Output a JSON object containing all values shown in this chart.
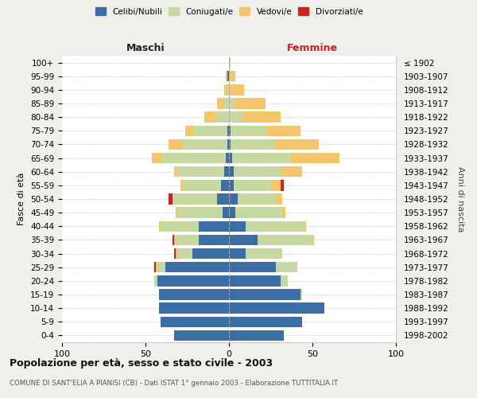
{
  "age_groups": [
    "0-4",
    "5-9",
    "10-14",
    "15-19",
    "20-24",
    "25-29",
    "30-34",
    "35-39",
    "40-44",
    "45-49",
    "50-54",
    "55-59",
    "60-64",
    "65-69",
    "70-74",
    "75-79",
    "80-84",
    "85-89",
    "90-94",
    "95-99",
    "100+"
  ],
  "birth_years": [
    "1998-2002",
    "1993-1997",
    "1988-1992",
    "1983-1987",
    "1978-1982",
    "1973-1977",
    "1968-1972",
    "1963-1967",
    "1958-1962",
    "1953-1957",
    "1948-1952",
    "1943-1947",
    "1938-1942",
    "1933-1937",
    "1928-1932",
    "1923-1927",
    "1918-1922",
    "1913-1917",
    "1908-1912",
    "1903-1907",
    "≤ 1902"
  ],
  "maschi_celibi": [
    33,
    41,
    42,
    42,
    43,
    38,
    22,
    18,
    18,
    4,
    7,
    5,
    3,
    2,
    1,
    1,
    0,
    0,
    0,
    1,
    0
  ],
  "maschi_coniugati": [
    0,
    0,
    0,
    0,
    2,
    5,
    9,
    14,
    23,
    27,
    27,
    22,
    28,
    38,
    27,
    20,
    8,
    3,
    1,
    0,
    0
  ],
  "maschi_vedovi": [
    0,
    0,
    0,
    0,
    0,
    1,
    1,
    1,
    1,
    1,
    0,
    2,
    2,
    6,
    8,
    5,
    7,
    4,
    2,
    1,
    0
  ],
  "maschi_divorziati": [
    0,
    0,
    0,
    0,
    0,
    1,
    1,
    1,
    0,
    0,
    2,
    0,
    0,
    0,
    0,
    0,
    0,
    0,
    0,
    0,
    0
  ],
  "femmine_celibi": [
    33,
    44,
    57,
    43,
    31,
    28,
    10,
    17,
    10,
    4,
    5,
    3,
    3,
    2,
    1,
    1,
    0,
    0,
    0,
    0,
    0
  ],
  "femmine_coniugati": [
    0,
    0,
    0,
    1,
    4,
    13,
    22,
    33,
    35,
    28,
    23,
    22,
    28,
    35,
    26,
    22,
    8,
    4,
    0,
    0,
    0
  ],
  "femmine_vedovi": [
    0,
    0,
    0,
    0,
    0,
    0,
    0,
    1,
    1,
    2,
    4,
    6,
    13,
    29,
    27,
    20,
    23,
    18,
    9,
    4,
    1
  ],
  "femmine_divorziati": [
    0,
    0,
    0,
    0,
    0,
    0,
    0,
    0,
    0,
    0,
    0,
    2,
    0,
    0,
    0,
    0,
    0,
    0,
    0,
    0,
    0
  ],
  "color_celibi": "#3a6ea5",
  "color_coniugati": "#c5d9a0",
  "color_vedovi": "#f5c56a",
  "color_divorziati": "#cc2222",
  "xlim": 100,
  "title": "Popolazione per età, sesso e stato civile - 2003",
  "subtitle": "COMUNE DI SANT'ELIA A PIANISI (CB) - Dati ISTAT 1° gennaio 2003 - Elaborazione TUTTITALIA.IT",
  "ylabel_left": "Fasce di età",
  "ylabel_right": "Anni di nascita",
  "xlabel_maschi": "Maschi",
  "xlabel_femmine": "Femmine",
  "bg_color": "#f0f0eb",
  "plot_bg_color": "#ffffff"
}
